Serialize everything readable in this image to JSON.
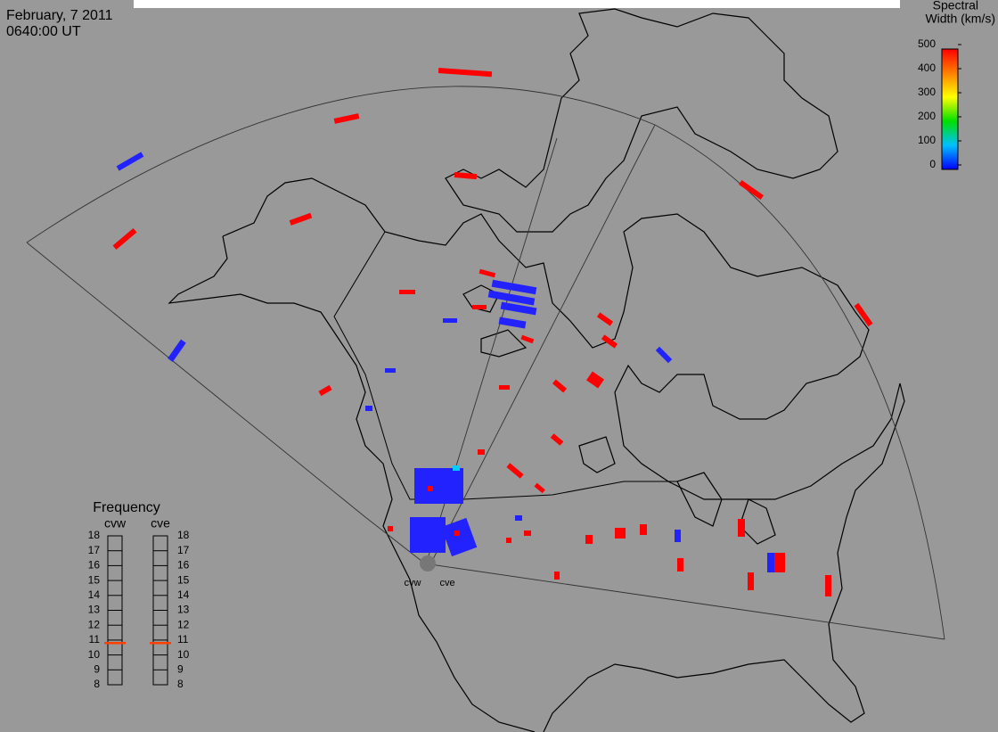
{
  "header": {
    "date": "February, 7 2011",
    "time": "0640:00 UT"
  },
  "colorbar": {
    "title": [
      "Spectral",
      "Width (km/s)"
    ],
    "ticks": [
      0,
      100,
      200,
      300,
      400,
      500
    ]
  },
  "frequency": {
    "title": "Frequency",
    "ticks": [
      8,
      9,
      10,
      11,
      12,
      13,
      14,
      15,
      16,
      17,
      18
    ],
    "radars": [
      {
        "name": "cvw",
        "value": 10.8
      },
      {
        "name": "cve",
        "value": 10.8
      }
    ]
  },
  "sites": [
    "cvw",
    "cve"
  ]
}
